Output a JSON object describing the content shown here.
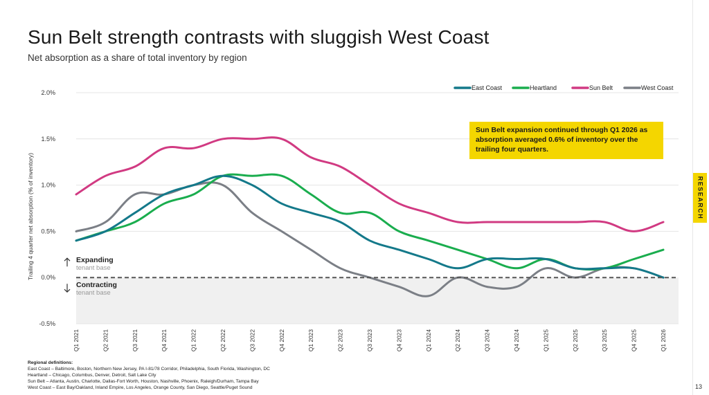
{
  "title": "Sun Belt strength contrasts with sluggish West Coast",
  "subtitle": "Net absorption as a share of total inventory by region",
  "side_tab": "RESEARCH",
  "callout": "Sun Belt expansion continued through Q1 2026 as absorption averaged 0.6% of inventory over the trailing four quarters.",
  "page_number": "13",
  "footnotes": {
    "heading": "Regional definitions:",
    "lines": [
      "East Coast – Baltimore, Boston, Northern New Jersey, PA I-81/78 Corridor, Philadelphia, South Florida, Washington, DC",
      "Heartland – Chicago, Columbus, Denver, Detroit, Salt Lake City",
      "Sun Belt – Atlanta, Austin, Charlotte, Dallas-Fort Worth, Houston, Nashville, Phoenix, Raleigh/Durham, Tampa Bay",
      "West Coast – East Bay/Oakland, Inland Empire, Los Angeles, Orange County, San Diego, Seattle/Puget Sound"
    ]
  },
  "chart_data": {
    "type": "line",
    "ylabel": "Trailing 4 quarter net absorption (% of inventory)",
    "xlabel": "",
    "ylim": [
      -0.5,
      2.0
    ],
    "yticks": [
      -0.5,
      0.0,
      0.5,
      1.0,
      1.5,
      2.0
    ],
    "ytick_labels": [
      "-0.5%",
      "0.0%",
      "0.5%",
      "1.0%",
      "1.5%",
      "2.0%"
    ],
    "grid": true,
    "legend_position": "top-right",
    "categories": [
      "Q1 2021",
      "Q2 2021",
      "Q3 2021",
      "Q4 2021",
      "Q1 2022",
      "Q2 2022",
      "Q3 2022",
      "Q4 2022",
      "Q1 2023",
      "Q2 2023",
      "Q3 2023",
      "Q4 2023",
      "Q1 2024",
      "Q2 2024",
      "Q3 2024",
      "Q4 2024",
      "Q1 2025",
      "Q2 2025",
      "Q3 2025",
      "Q4 2025",
      "Q1 2026"
    ],
    "series": [
      {
        "name": "East Coast",
        "color": "#14798a",
        "values": [
          0.4,
          0.5,
          0.7,
          0.9,
          1.0,
          1.1,
          1.0,
          0.8,
          0.7,
          0.6,
          0.4,
          0.3,
          0.2,
          0.1,
          0.2,
          0.2,
          0.2,
          0.1,
          0.1,
          0.1,
          0.0
        ]
      },
      {
        "name": "Heartland",
        "color": "#1aad4e",
        "values": [
          0.4,
          0.5,
          0.6,
          0.8,
          0.9,
          1.1,
          1.1,
          1.1,
          0.9,
          0.7,
          0.7,
          0.5,
          0.4,
          0.3,
          0.2,
          0.1,
          0.2,
          0.1,
          0.1,
          0.2,
          0.3
        ]
      },
      {
        "name": "Sun Belt",
        "color": "#d13a82",
        "values": [
          0.9,
          1.1,
          1.2,
          1.4,
          1.4,
          1.5,
          1.5,
          1.5,
          1.3,
          1.2,
          1.0,
          0.8,
          0.7,
          0.6,
          0.6,
          0.6,
          0.6,
          0.6,
          0.6,
          0.5,
          0.6
        ]
      },
      {
        "name": "West Coast",
        "color": "#7b7f86",
        "values": [
          0.5,
          0.6,
          0.9,
          0.9,
          1.0,
          1.0,
          0.7,
          0.5,
          0.3,
          0.1,
          0.0,
          -0.1,
          -0.2,
          0.0,
          -0.1,
          -0.1,
          0.1,
          0.0,
          0.1,
          0.1,
          0.0
        ]
      }
    ],
    "annotations": [
      {
        "label": "Expanding",
        "sublabel": "tenant base",
        "arrow": "up"
      },
      {
        "label": "Contracting",
        "sublabel": "tenant base",
        "arrow": "down"
      }
    ],
    "zero_line": "dashed",
    "negative_region_shaded": true
  }
}
